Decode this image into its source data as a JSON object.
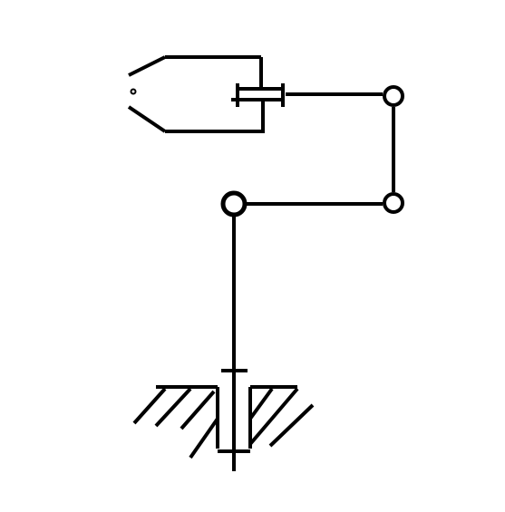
{
  "diagram": {
    "kind": "kinematic-schematic",
    "components": [
      "base-with-ground-hatching",
      "vertical-column",
      "revolute-joint",
      "horizontal-link",
      "revolute-joint",
      "vertical-link",
      "revolute-joint",
      "horizontal-arm",
      "sliding-joint",
      "gripper"
    ],
    "colors": {
      "stroke": "#000000",
      "background": "#ffffff",
      "joint_fill": "#ffffff"
    }
  }
}
